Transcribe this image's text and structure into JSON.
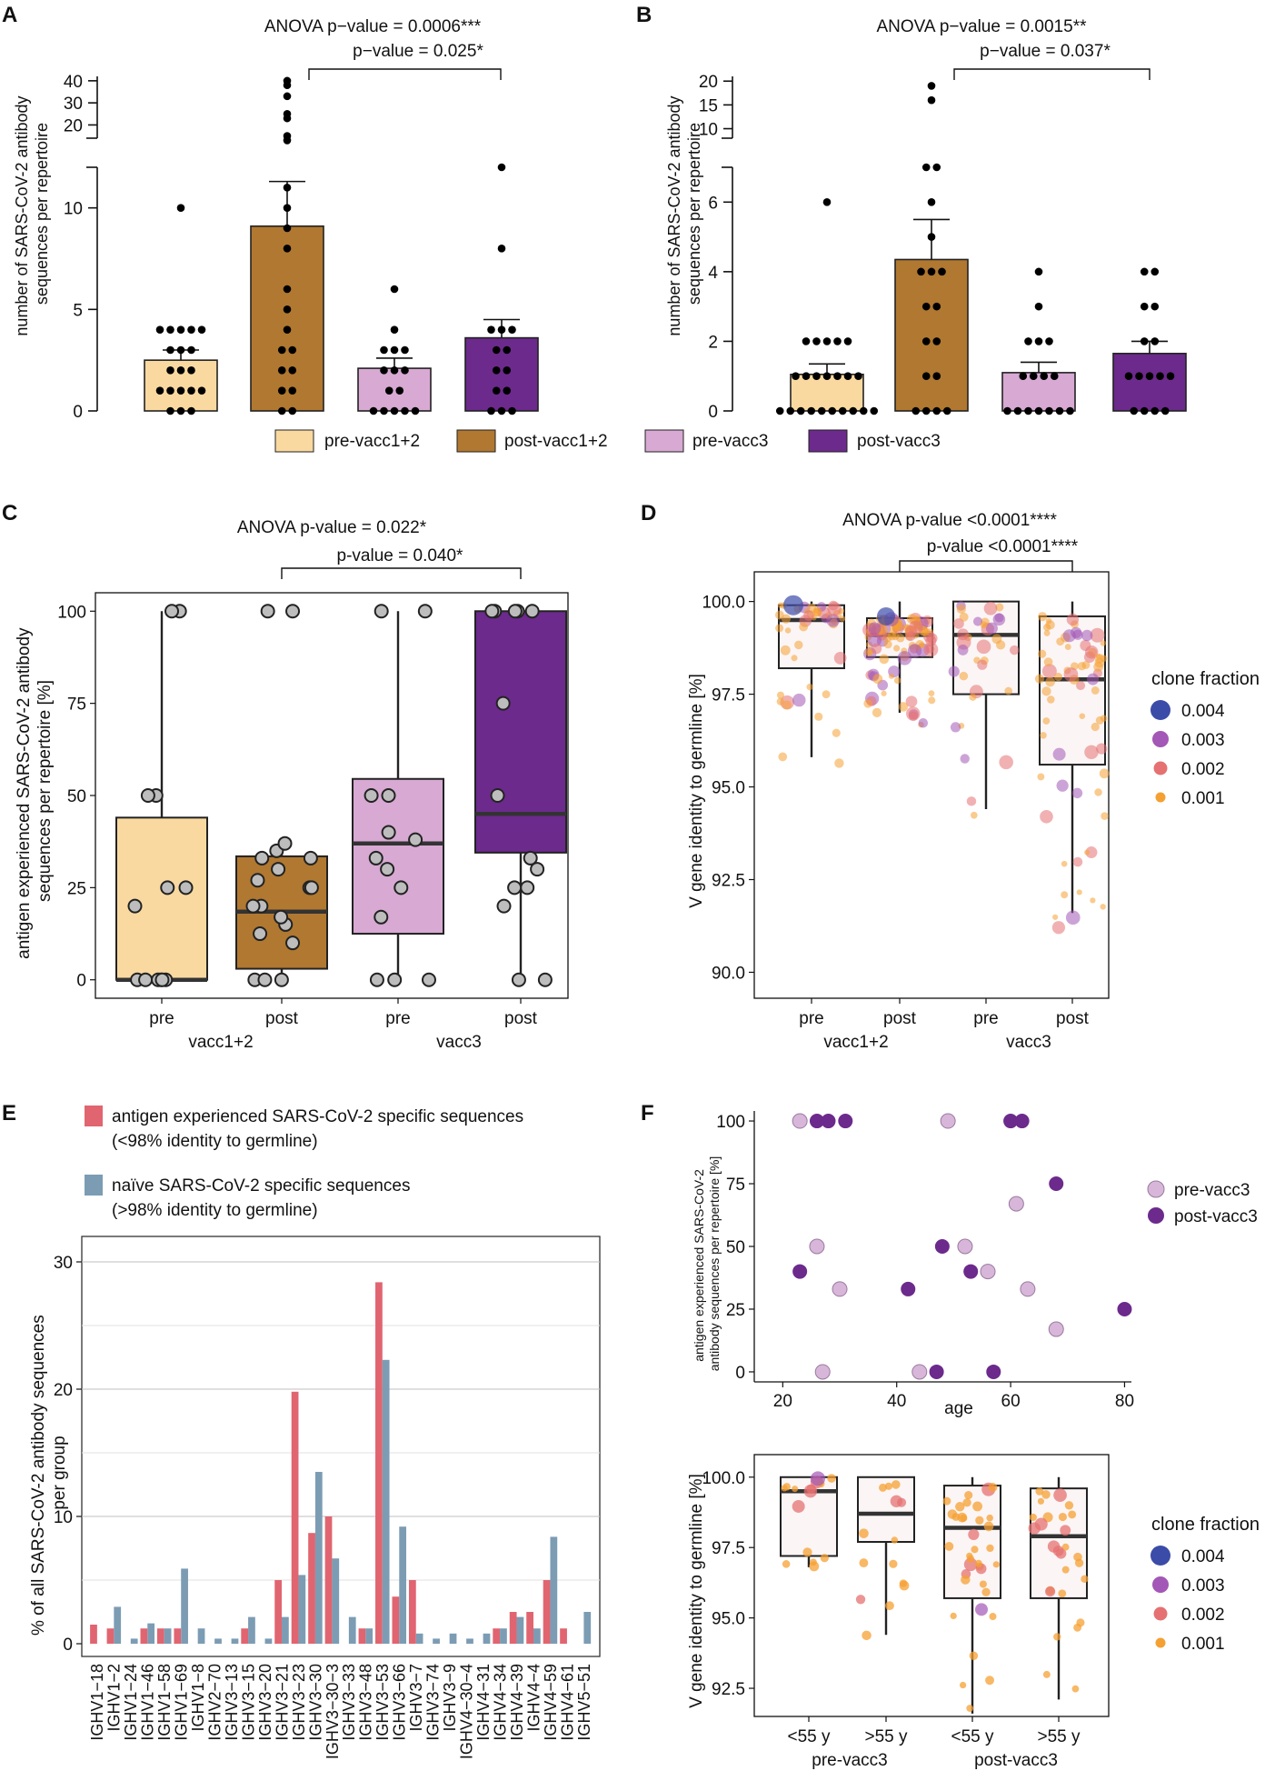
{
  "colors": {
    "pre12": "#f9d9a0",
    "post12": "#b07830",
    "pre3": "#d7a9d3",
    "post3": "#6c2a8c",
    "red": "#e06570",
    "blue": "#7c9cb4",
    "cf004": "#3b4ba8",
    "cf003": "#a357b6",
    "cf002": "#e57172",
    "cf001": "#f5a033",
    "dot": "#000000"
  },
  "panel_letters": {
    "A": "A",
    "B": "B",
    "C": "C",
    "D": "D",
    "E": "E",
    "F": "F"
  },
  "legend_AB": [
    "pre-vacc1+2",
    "post-vacc1+2",
    "pre-vacc3",
    "post-vacc3"
  ],
  "clone_fraction_legend": {
    "title": "clone fraction",
    "items": [
      {
        "label": "0.004",
        "color": "#3b4ba8"
      },
      {
        "label": "0.003",
        "color": "#a357b6"
      },
      {
        "label": "0.002",
        "color": "#e57172"
      },
      {
        "label": "0.001",
        "color": "#f5a033"
      }
    ]
  },
  "chart_data": [
    {
      "id": "A",
      "type": "bar",
      "ylabel": "number of SARS-CoV-2 antibody sequences per repertoire",
      "anova": "ANOVA p−value = 0.0006***",
      "pvalue": "p−value = 0.025*",
      "categories": [
        "pre-vacc1+2",
        "post-vacc1+2",
        "pre-vacc3",
        "post-vacc3"
      ],
      "values": [
        2.5,
        9.1,
        2.1,
        3.6
      ],
      "sem": [
        0.5,
        2.2,
        0.5,
        0.9
      ],
      "lower_ylim": [
        0,
        12
      ],
      "lower_ticks": [
        0,
        5,
        10
      ],
      "upper_ylim": [
        14,
        42
      ],
      "upper_ticks": [
        20,
        30,
        40
      ],
      "points": [
        [
          0,
          0,
          0,
          1,
          1,
          1,
          1,
          1,
          2,
          2,
          2,
          3,
          3,
          3,
          4,
          4,
          4,
          4,
          4,
          10
        ],
        [
          0,
          0,
          1,
          1,
          2,
          2,
          3,
          3,
          4,
          5,
          6,
          8,
          9,
          10,
          11,
          13,
          15,
          23,
          25,
          33,
          38,
          40
        ],
        [
          0,
          0,
          0,
          0,
          0,
          1,
          1,
          2,
          2,
          2,
          3,
          3,
          3,
          4,
          6
        ],
        [
          0,
          0,
          0,
          1,
          1,
          2,
          2,
          3,
          3,
          4,
          4,
          4,
          8,
          12
        ]
      ]
    },
    {
      "id": "B",
      "type": "bar",
      "ylabel": "number of SARS-CoV-2 antibody sequences per repertoire",
      "anova": "ANOVA p−value = 0.0015**",
      "pvalue": "p−value = 0.037*",
      "categories": [
        "pre-vacc1+2",
        "post-vacc1+2",
        "pre-vacc3",
        "post-vacc3"
      ],
      "values": [
        1.05,
        4.35,
        1.1,
        1.65
      ],
      "sem": [
        0.3,
        1.15,
        0.3,
        0.35
      ],
      "lower_ylim": [
        0,
        7
      ],
      "lower_ticks": [
        0,
        2,
        4,
        6
      ],
      "upper_ylim": [
        8,
        21
      ],
      "upper_ticks": [
        10,
        15,
        20
      ],
      "points": [
        [
          0,
          0,
          0,
          0,
          0,
          0,
          0,
          0,
          0,
          0,
          1,
          1,
          1,
          1,
          1,
          1,
          1,
          2,
          2,
          2,
          2,
          2,
          6
        ],
        [
          0,
          0,
          0,
          0,
          1,
          1,
          2,
          2,
          3,
          3,
          4,
          4,
          4,
          5,
          6,
          7,
          7,
          16,
          19
        ],
        [
          0,
          0,
          0,
          0,
          0,
          0,
          0,
          1,
          1,
          1,
          1,
          2,
          2,
          2,
          3,
          4
        ],
        [
          0,
          0,
          0,
          0,
          1,
          1,
          1,
          1,
          1,
          2,
          2,
          3,
          3,
          4,
          4
        ]
      ]
    },
    {
      "id": "C",
      "type": "box",
      "ylabel": "antigen experienced SARS-CoV-2 antibody sequences per repertoire [%]",
      "anova": "ANOVA p-value = 0.022*",
      "pvalue": "p-value = 0.040*",
      "categories": [
        "pre",
        "post",
        "pre",
        "post"
      ],
      "groups": [
        "vacc1+2",
        "vacc3"
      ],
      "ylim": [
        -5,
        105
      ],
      "yticks": [
        0,
        25,
        50,
        75,
        100
      ],
      "boxes": [
        {
          "q1": 0,
          "median": 0,
          "q3": 44,
          "lo": 0,
          "hi": 100
        },
        {
          "q1": 3,
          "median": 18.5,
          "q3": 33.5,
          "lo": 0,
          "hi": 37
        },
        {
          "q1": 12.5,
          "median": 37,
          "q3": 54.5,
          "lo": 0,
          "hi": 100
        },
        {
          "q1": 34.5,
          "median": 45,
          "q3": 100,
          "lo": 0,
          "hi": 100
        }
      ],
      "points": [
        [
          0,
          0,
          0,
          0,
          0,
          0,
          20,
          25,
          25,
          50,
          50,
          100,
          100
        ],
        [
          0,
          0,
          0,
          10,
          12.5,
          15,
          17,
          20,
          20,
          25,
          25,
          27,
          30,
          33,
          33,
          35,
          37,
          100,
          100
        ],
        [
          0,
          0,
          0,
          17,
          25,
          30,
          33,
          38,
          40,
          50,
          50,
          100,
          100
        ],
        [
          0,
          0,
          20,
          25,
          25,
          30,
          33,
          50,
          75,
          100,
          100,
          100,
          100,
          100
        ]
      ]
    },
    {
      "id": "D",
      "type": "box",
      "ylabel": "V gene identity to germline [%]",
      "anova": "ANOVA p-value <0.0001****",
      "pvalue": "p-value <0.0001****",
      "categories": [
        "pre",
        "post",
        "pre",
        "post"
      ],
      "groups": [
        "vacc1+2",
        "vacc3"
      ],
      "ylim": [
        89.3,
        100.8
      ],
      "yticks": [
        90.0,
        92.5,
        95.0,
        97.5,
        100.0
      ],
      "boxes": [
        {
          "q1": 98.2,
          "median": 99.5,
          "q3": 99.9,
          "lo": 95.8,
          "hi": 100
        },
        {
          "q1": 98.5,
          "median": 99.1,
          "q3": 99.55,
          "lo": 97.0,
          "hi": 100
        },
        {
          "q1": 97.5,
          "median": 99.1,
          "q3": 100,
          "lo": 94.4,
          "hi": 100
        },
        {
          "q1": 95.6,
          "median": 97.9,
          "q3": 99.6,
          "lo": 91.6,
          "hi": 100
        }
      ]
    },
    {
      "id": "E",
      "type": "bar",
      "ylabel": "% of all SARS-CoV-2 antibody sequences per group",
      "ylim": [
        -1,
        32
      ],
      "yticks": [
        0,
        10,
        20,
        30
      ],
      "categories": [
        "IGHV1−18",
        "IGHV1−2",
        "IGHV1−24",
        "IGHV1−46",
        "IGHV1−58",
        "IGHV1−69",
        "IGHV1−8",
        "IGHV2−70",
        "IGHV3−13",
        "IGHV3−15",
        "IGHV3−20",
        "IGHV3−21",
        "IGHV3−23",
        "IGHV3−30",
        "IGHV3−30−3",
        "IGHV3−33",
        "IGHV3−48",
        "IGHV3−53",
        "IGHV3−66",
        "IGHV3−7",
        "IGHV3−74",
        "IGHV3−9",
        "IGHV4−30−4",
        "IGHV4−31",
        "IGHV4−34",
        "IGHV4−39",
        "IGHV4−4",
        "IGHV4−59",
        "IGHV4−61",
        "IGHV5−51"
      ],
      "series": [
        {
          "name": "antigen experienced SARS-CoV-2 specific sequences\n(<98% identity to germline)",
          "line1": "antigen experienced SARS-CoV-2 specific sequences",
          "line2": "(<98% identity to germline)",
          "values": [
            1.5,
            1.2,
            0,
            1.2,
            1.2,
            1.2,
            0,
            0,
            0,
            1.2,
            0,
            5.0,
            19.8,
            8.7,
            10.0,
            0,
            1.2,
            28.4,
            3.7,
            5.0,
            0,
            0,
            0,
            0,
            1.2,
            2.5,
            2.5,
            5.0,
            1.2,
            0
          ]
        },
        {
          "name": "naïve SARS-CoV-2 specific sequences\n(>98% identity to germline)",
          "line1": "naïve SARS-CoV-2 specific sequences",
          "line2": "(>98% identity to germline)",
          "values": [
            0,
            2.9,
            0.4,
            1.6,
            1.2,
            5.9,
            1.2,
            0.4,
            0.4,
            2.1,
            0.4,
            2.1,
            5.4,
            13.5,
            6.7,
            2.1,
            1.2,
            22.3,
            9.2,
            0.8,
            0.4,
            0.8,
            0.4,
            0.8,
            1.2,
            2.1,
            1.2,
            8.4,
            0,
            2.5
          ]
        }
      ]
    },
    {
      "id": "F-top",
      "type": "scatter",
      "xlabel": "age",
      "ylabel": "antigen experienced SARS-CoV-2 antibody sequences per repertoire [%]",
      "xlim": [
        15,
        82
      ],
      "xticks": [
        20,
        40,
        60,
        80
      ],
      "ylim": [
        -4,
        104
      ],
      "yticks": [
        0,
        25,
        50,
        75,
        100
      ],
      "series": [
        {
          "name": "pre-vacc3",
          "points": [
            [
              23,
              100
            ],
            [
              26,
              50
            ],
            [
              30,
              33
            ],
            [
              27,
              0
            ],
            [
              44,
              0
            ],
            [
              49,
              100
            ],
            [
              52,
              50
            ],
            [
              56,
              40
            ],
            [
              61,
              67
            ],
            [
              63,
              33
            ],
            [
              68,
              17
            ]
          ]
        },
        {
          "name": "post-vacc3",
          "points": [
            [
              23,
              40
            ],
            [
              26,
              100
            ],
            [
              28,
              100
            ],
            [
              31,
              100
            ],
            [
              42,
              33
            ],
            [
              48,
              50
            ],
            [
              47,
              0
            ],
            [
              53,
              40
            ],
            [
              57,
              0
            ],
            [
              60,
              100
            ],
            [
              62,
              100
            ],
            [
              68,
              75
            ],
            [
              80,
              25
            ]
          ]
        }
      ]
    },
    {
      "id": "F-bottom",
      "type": "box",
      "ylabel": "V gene identity to germline [%]",
      "categories": [
        "<55 y",
        ">55 y",
        "<55 y",
        ">55 y"
      ],
      "groups": [
        "pre-vacc3",
        "post-vacc3"
      ],
      "ylim": [
        91.5,
        100.8
      ],
      "yticks": [
        92.5,
        95.0,
        97.5,
        100.0
      ],
      "boxes": [
        {
          "q1": 97.2,
          "median": 99.5,
          "q3": 100,
          "lo": 96.8,
          "hi": 100
        },
        {
          "q1": 97.7,
          "median": 98.7,
          "q3": 100,
          "lo": 94.4,
          "hi": 100
        },
        {
          "q1": 95.7,
          "median": 98.2,
          "q3": 99.7,
          "lo": 91.6,
          "hi": 100
        },
        {
          "q1": 95.7,
          "median": 97.9,
          "q3": 99.6,
          "lo": 92.1,
          "hi": 100
        }
      ]
    }
  ]
}
